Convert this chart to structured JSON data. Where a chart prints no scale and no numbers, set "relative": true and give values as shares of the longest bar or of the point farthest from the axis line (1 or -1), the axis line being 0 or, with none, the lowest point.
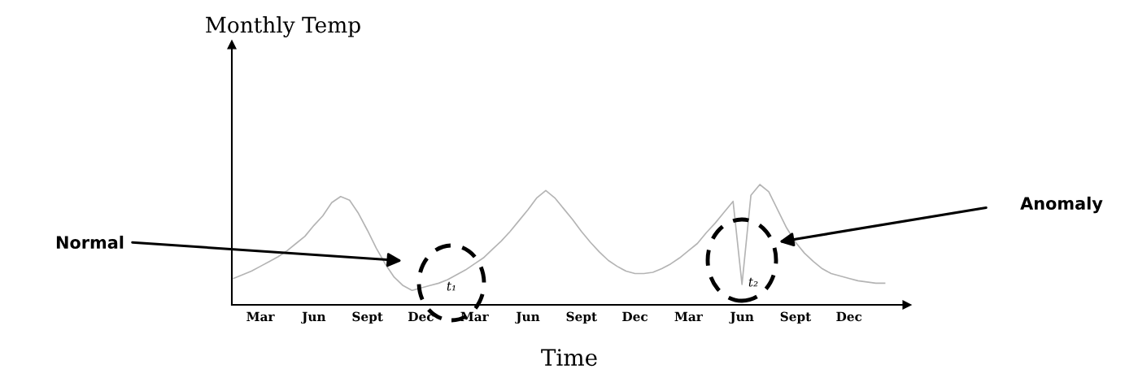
{
  "chart_data": {
    "type": "line",
    "relative": true,
    "xlabel": "Time",
    "tick_labels": "x",
    "grid": false,
    "legend": false,
    "marker": "none",
    "line_style": "solid",
    "categories": [
      null,
      null,
      null,
      "Mar",
      null,
      null,
      null,
      null,
      null,
      "Jun",
      null,
      null,
      null,
      null,
      null,
      "Sept",
      null,
      null,
      null,
      null,
      null,
      "Dec",
      null,
      null,
      null,
      null,
      null,
      "Mar",
      null,
      null,
      null,
      null,
      null,
      "Jun",
      null,
      null,
      null,
      null,
      null,
      "Sept",
      null,
      null,
      null,
      null,
      null,
      "Dec",
      null,
      null,
      null,
      null,
      null,
      "Mar",
      null,
      null,
      null,
      null,
      null,
      "Jun",
      null,
      null,
      null,
      null,
      null,
      "Sept",
      null,
      null,
      null,
      null,
      null,
      "Dec",
      null,
      null,
      null,
      null,
      null,
      null
    ],
    "series": [
      {
        "color": "#b4b4b4",
        "values": [
          0.22,
          0.25,
          0.28,
          0.32,
          0.36,
          0.4,
          0.45,
          0.51,
          0.57,
          0.66,
          0.74,
          0.85,
          0.9,
          0.87,
          0.76,
          0.62,
          0.47,
          0.34,
          0.23,
          0.16,
          0.12,
          0.14,
          0.16,
          0.18,
          0.21,
          0.25,
          0.29,
          0.34,
          0.39,
          0.46,
          0.53,
          0.61,
          0.7,
          0.79,
          0.89,
          0.95,
          0.89,
          0.8,
          0.71,
          0.61,
          0.52,
          0.44,
          0.37,
          0.32,
          0.28,
          0.26,
          0.26,
          0.27,
          0.3,
          0.34,
          0.39,
          0.45,
          0.51,
          0.6,
          0.68,
          0.77,
          0.86,
          0.17,
          0.91,
          1.0,
          0.94,
          0.79,
          0.64,
          0.52,
          0.43,
          0.36,
          0.3,
          0.26,
          0.24,
          0.22,
          0.2,
          0.19,
          0.18,
          0.18,
          null,
          null
        ]
      }
    ],
    "annotations": [
      "Monthly Temp",
      "Normal",
      "Anomaly",
      "t₁",
      "t₂"
    ]
  }
}
